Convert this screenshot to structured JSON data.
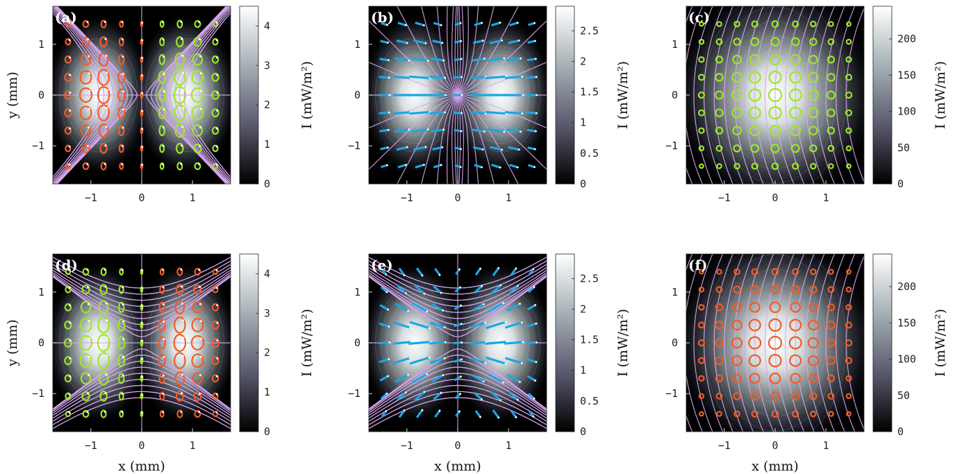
{
  "chart_data": [
    {
      "type": "heatmap",
      "panel_label": "(a)",
      "xlabel": "",
      "ylabel": "y (mm)",
      "xlim": [
        -1.75,
        1.75
      ],
      "ylim": [
        -1.75,
        1.75
      ],
      "xticks": [
        -1,
        0,
        1
      ],
      "yticks": [
        -1,
        0,
        1
      ],
      "colorbar": {
        "label": "I (mW/m²)",
        "range": [
          0,
          4.5
        ],
        "ticks": [
          0,
          1,
          2,
          3,
          4
        ]
      },
      "field": "two-lobe",
      "overlay": "ellipses-opposite-handedness",
      "left_marker_color": "#f25c26",
      "right_marker_color": "#9ee62a",
      "center_marker_color": "#f25c26",
      "streamlines": "hyperbolic-x"
    },
    {
      "type": "heatmap",
      "panel_label": "(b)",
      "xlabel": "",
      "ylabel": "",
      "xlim": [
        -1.75,
        1.75
      ],
      "ylim": [
        -1.75,
        1.75
      ],
      "xticks": [
        -1,
        0,
        1
      ],
      "yticks": [
        -1,
        0,
        1
      ],
      "colorbar": {
        "label": "I (mW/m²)",
        "range": [
          0,
          2.9
        ],
        "ticks": [
          0,
          0.5,
          1,
          1.5,
          2,
          2.5
        ]
      },
      "field": "two-lobe",
      "overlay": "linear-dashes-horizontal",
      "left_marker_color": "#1aa7e6",
      "right_marker_color": "#1aa7e6",
      "center_marker_color": "#1aa7e6",
      "streamlines": "radial"
    },
    {
      "type": "heatmap",
      "panel_label": "(c)",
      "xlabel": "",
      "ylabel": "",
      "xlim": [
        -1.75,
        1.75
      ],
      "ylim": [
        -1.75,
        1.75
      ],
      "xticks": [
        -1,
        0,
        1
      ],
      "yticks": [
        -1,
        0,
        1
      ],
      "colorbar": {
        "label": "I (mW/m²)",
        "range": [
          0,
          245
        ],
        "ticks": [
          0,
          50,
          100,
          150,
          200
        ]
      },
      "field": "one-lobe",
      "overlay": "circles",
      "left_marker_color": "#9ee62a",
      "right_marker_color": "#9ee62a",
      "center_marker_color": "#9ee62a",
      "streamlines": "curved-arcs"
    },
    {
      "type": "heatmap",
      "panel_label": "(d)",
      "xlabel": "x (mm)",
      "ylabel": "y (mm)",
      "xlim": [
        -1.75,
        1.75
      ],
      "ylim": [
        -1.75,
        1.75
      ],
      "xticks": [
        -1,
        0,
        1
      ],
      "yticks": [
        -1,
        0,
        1
      ],
      "colorbar": {
        "label": "I (mW/m²)",
        "range": [
          0,
          4.5
        ],
        "ticks": [
          0,
          1,
          2,
          3,
          4
        ]
      },
      "field": "two-lobe",
      "overlay": "ellipses-opposite-handedness",
      "left_marker_color": "#9ee62a",
      "right_marker_color": "#f25c26",
      "center_marker_color": "#9ee62a",
      "streamlines": "hyperbolic-y"
    },
    {
      "type": "heatmap",
      "panel_label": "(e)",
      "xlabel": "x (mm)",
      "ylabel": "",
      "xlim": [
        -1.75,
        1.75
      ],
      "ylim": [
        -1.75,
        1.75
      ],
      "xticks": [
        -1,
        0,
        1
      ],
      "yticks": [
        -1,
        0,
        1
      ],
      "colorbar": {
        "label": "I (mW/m²)",
        "range": [
          0,
          2.9
        ],
        "ticks": [
          0,
          0.5,
          1,
          1.5,
          2,
          2.5
        ]
      },
      "field": "two-lobe",
      "overlay": "linear-dashes-diagonal",
      "left_marker_color": "#1aa7e6",
      "right_marker_color": "#1aa7e6",
      "center_marker_color": "#1aa7e6",
      "streamlines": "hyperbolic-y"
    },
    {
      "type": "heatmap",
      "panel_label": "(f)",
      "xlabel": "x (mm)",
      "ylabel": "",
      "xlim": [
        -1.75,
        1.75
      ],
      "ylim": [
        -1.75,
        1.75
      ],
      "xticks": [
        -1,
        0,
        1
      ],
      "yticks": [
        -1,
        0,
        1
      ],
      "colorbar": {
        "label": "I (mW/m²)",
        "range": [
          0,
          245
        ],
        "ticks": [
          0,
          50,
          100,
          150,
          200
        ]
      },
      "field": "one-lobe",
      "overlay": "circles",
      "left_marker_color": "#f25c26",
      "right_marker_color": "#f25c26",
      "center_marker_color": "#f25c26",
      "streamlines": "curved-arcs"
    }
  ],
  "colors": {
    "streamline": "#d7a6f0",
    "contour": "#c8c8d8",
    "colormap": [
      "#000000",
      "#5a5a6e",
      "#a5b0b5",
      "#ffffff"
    ]
  }
}
